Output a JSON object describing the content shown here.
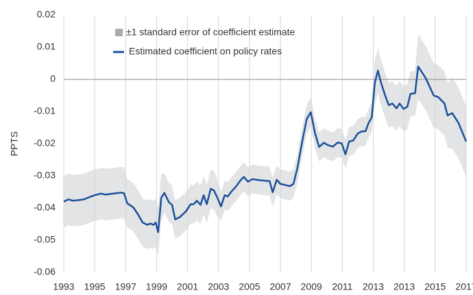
{
  "chart_data": {
    "type": "line",
    "y_label": "PPTS",
    "xlim": [
      0,
      13
    ],
    "xticks": [
      {
        "value": 0,
        "label": "1993"
      },
      {
        "value": 1,
        "label": "1995"
      },
      {
        "value": 2,
        "label": "1997"
      },
      {
        "value": 3,
        "label": "1999"
      },
      {
        "value": 4,
        "label": "2001"
      },
      {
        "value": 5,
        "label": "2003"
      },
      {
        "value": 6,
        "label": "2005"
      },
      {
        "value": 7,
        "label": "2007"
      },
      {
        "value": 8,
        "label": "2009"
      },
      {
        "value": 9,
        "label": "2011"
      },
      {
        "value": 10,
        "label": "2013"
      },
      {
        "value": 11,
        "label": "2013"
      },
      {
        "value": 12,
        "label": "2015"
      },
      {
        "value": 13,
        "label": "2017"
      }
    ],
    "ylim": [
      -0.06,
      0.02
    ],
    "yticks": [
      0.02,
      0.01,
      0,
      -0.01,
      -0.02,
      -0.03,
      -0.04,
      -0.05,
      -0.06
    ],
    "grid": "x",
    "x": [
      0,
      0.15,
      0.3,
      0.5,
      0.65,
      0.85,
      1.0,
      1.2,
      1.35,
      1.6,
      1.85,
      1.95,
      2.05,
      2.25,
      2.4,
      2.55,
      2.7,
      2.8,
      2.9,
      2.97,
      3.05,
      3.15,
      3.25,
      3.4,
      3.5,
      3.6,
      3.75,
      3.95,
      4.1,
      4.2,
      4.3,
      4.42,
      4.52,
      4.62,
      4.75,
      4.85,
      4.95,
      5.08,
      5.2,
      5.3,
      5.42,
      5.55,
      5.7,
      5.82,
      5.95,
      6.1,
      6.3,
      6.5,
      6.65,
      6.75,
      6.88,
      7.0,
      7.15,
      7.3,
      7.42,
      7.55,
      7.7,
      7.85,
      7.98,
      8.12,
      8.25,
      8.4,
      8.55,
      8.7,
      8.85,
      8.98,
      9.1,
      9.22,
      9.35,
      9.5,
      9.62,
      9.75,
      9.85,
      9.95,
      10.05,
      10.15,
      10.25,
      10.4,
      10.5,
      10.62,
      10.75,
      10.85,
      10.98,
      11.1,
      11.2,
      11.35,
      11.45,
      11.7,
      11.95,
      12.1,
      12.3,
      12.4,
      12.55,
      12.75,
      13.0
    ],
    "band": {
      "name": "±1 standard error of coefficient estimate",
      "color": "#e2e4e5",
      "upper": [
        -0.03,
        -0.0293,
        -0.0297,
        -0.0295,
        -0.0293,
        -0.0285,
        -0.028,
        -0.0275,
        -0.0278,
        -0.0275,
        -0.0272,
        -0.0274,
        -0.031,
        -0.0323,
        -0.0345,
        -0.037,
        -0.0377,
        -0.0373,
        -0.0377,
        -0.037,
        -0.04,
        -0.0293,
        -0.0293,
        -0.0322,
        -0.033,
        -0.0375,
        -0.0368,
        -0.035,
        -0.0328,
        -0.0328,
        -0.0317,
        -0.033,
        -0.03,
        -0.0328,
        -0.028,
        -0.0285,
        -0.0305,
        -0.035,
        -0.0315,
        -0.0319,
        -0.0303,
        -0.029,
        -0.027,
        -0.0258,
        -0.0273,
        -0.0265,
        -0.0268,
        -0.027,
        -0.0271,
        -0.0306,
        -0.0267,
        -0.028,
        -0.0283,
        -0.0287,
        -0.028,
        -0.023,
        -0.015,
        -0.0078,
        -0.0057,
        -0.0123,
        -0.0165,
        -0.0152,
        -0.016,
        -0.0164,
        -0.0151,
        -0.0154,
        -0.0188,
        -0.0148,
        -0.0145,
        -0.0123,
        -0.0117,
        -0.0116,
        -0.009,
        -0.0073,
        0.006,
        0.0097,
        0.006,
        0.0015,
        -0.001,
        -0.0005,
        -0.002,
        -0.0005,
        -0.0022,
        -0.0015,
        0.0025,
        0.0027,
        0.014,
        0.0103,
        0.005,
        0.0045,
        0.0025,
        -0.0012,
        0.0005,
        -0.0025,
        -0.0083
      ],
      "lower": [
        -0.046,
        -0.0453,
        -0.0457,
        -0.0455,
        -0.0453,
        -0.0445,
        -0.044,
        -0.0435,
        -0.0438,
        -0.0435,
        -0.0432,
        -0.0434,
        -0.046,
        -0.0473,
        -0.0495,
        -0.052,
        -0.0527,
        -0.0523,
        -0.0527,
        -0.052,
        -0.055,
        -0.0443,
        -0.0413,
        -0.0442,
        -0.045,
        -0.0495,
        -0.0488,
        -0.047,
        -0.0448,
        -0.0448,
        -0.0437,
        -0.045,
        -0.042,
        -0.0448,
        -0.04,
        -0.0405,
        -0.0425,
        -0.044,
        -0.0405,
        -0.0409,
        -0.0393,
        -0.038,
        -0.036,
        -0.0348,
        -0.0363,
        -0.0355,
        -0.0358,
        -0.036,
        -0.0361,
        -0.0396,
        -0.0357,
        -0.037,
        -0.0373,
        -0.0377,
        -0.037,
        -0.032,
        -0.024,
        -0.0168,
        -0.0147,
        -0.0213,
        -0.0255,
        -0.0242,
        -0.025,
        -0.0254,
        -0.0241,
        -0.0244,
        -0.0278,
        -0.0238,
        -0.0235,
        -0.0213,
        -0.0207,
        -0.0206,
        -0.018,
        -0.0163,
        -0.008,
        -0.0043,
        -0.008,
        -0.0125,
        -0.015,
        -0.0145,
        -0.016,
        -0.0145,
        -0.0162,
        -0.0155,
        -0.0115,
        -0.0113,
        -0.006,
        -0.0097,
        -0.015,
        -0.0155,
        -0.0175,
        -0.0212,
        -0.0215,
        -0.0245,
        -0.0303
      ]
    },
    "series": [
      {
        "name": "Estimated coefficient on policy rates",
        "color": "#1b4f9a",
        "values": [
          -0.038,
          -0.0373,
          -0.0377,
          -0.0375,
          -0.0373,
          -0.0365,
          -0.036,
          -0.0355,
          -0.0358,
          -0.0355,
          -0.0352,
          -0.0354,
          -0.0385,
          -0.0398,
          -0.042,
          -0.0445,
          -0.0452,
          -0.0448,
          -0.0452,
          -0.0445,
          -0.0475,
          -0.0368,
          -0.0353,
          -0.0382,
          -0.039,
          -0.0435,
          -0.0428,
          -0.041,
          -0.0388,
          -0.0388,
          -0.0377,
          -0.039,
          -0.036,
          -0.0388,
          -0.034,
          -0.0345,
          -0.0365,
          -0.0395,
          -0.036,
          -0.0364,
          -0.0348,
          -0.0335,
          -0.0315,
          -0.0303,
          -0.0318,
          -0.031,
          -0.0313,
          -0.0315,
          -0.0316,
          -0.0351,
          -0.0312,
          -0.0325,
          -0.0328,
          -0.0332,
          -0.0325,
          -0.0275,
          -0.0195,
          -0.0123,
          -0.0102,
          -0.0168,
          -0.021,
          -0.0197,
          -0.0205,
          -0.0209,
          -0.0196,
          -0.0199,
          -0.0233,
          -0.0193,
          -0.019,
          -0.0168,
          -0.0162,
          -0.0161,
          -0.0135,
          -0.0118,
          -0.001,
          0.0027,
          -0.001,
          -0.0055,
          -0.008,
          -0.0075,
          -0.009,
          -0.0075,
          -0.0092,
          -0.0085,
          -0.0045,
          -0.0043,
          0.004,
          0.0003,
          -0.005,
          -0.0055,
          -0.0075,
          -0.0112,
          -0.0105,
          -0.0135,
          -0.0193
        ]
      }
    ]
  }
}
